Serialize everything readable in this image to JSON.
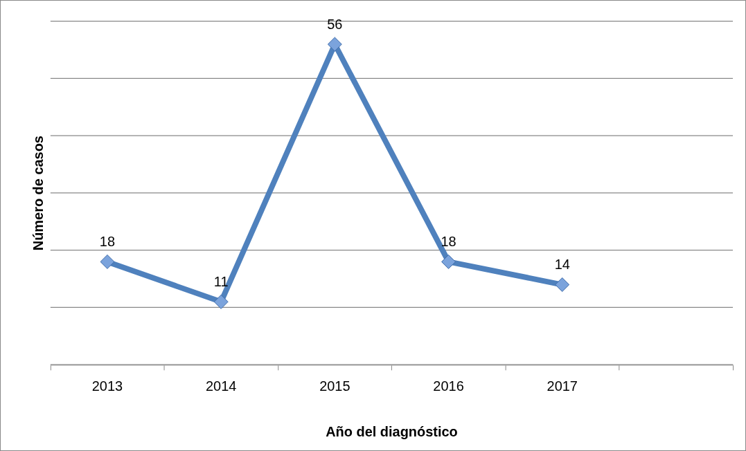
{
  "chart_data": {
    "type": "line",
    "xlabel": "Año del diagnóstico",
    "ylabel": "Número de casos",
    "categories": [
      "2013",
      "2014",
      "2015",
      "2016",
      "2017",
      null
    ],
    "series": [
      {
        "color": "#4f81bd",
        "values": [
          18,
          11,
          56,
          18,
          14,
          null
        ]
      }
    ],
    "ylim": [
      0,
      60
    ],
    "yticks": [
      {
        "value": 0,
        "label": null
      },
      {
        "value": 10,
        "label": null
      },
      {
        "value": 20,
        "label": null
      },
      {
        "value": 30,
        "label": null
      },
      {
        "value": 40,
        "label": null
      },
      {
        "value": 50,
        "label": null
      },
      {
        "value": 60,
        "label": null
      }
    ],
    "tick_labels": "x",
    "grid": "y",
    "legend": false,
    "marker": "diamond",
    "line_style": "solid",
    "data_labels": true
  }
}
